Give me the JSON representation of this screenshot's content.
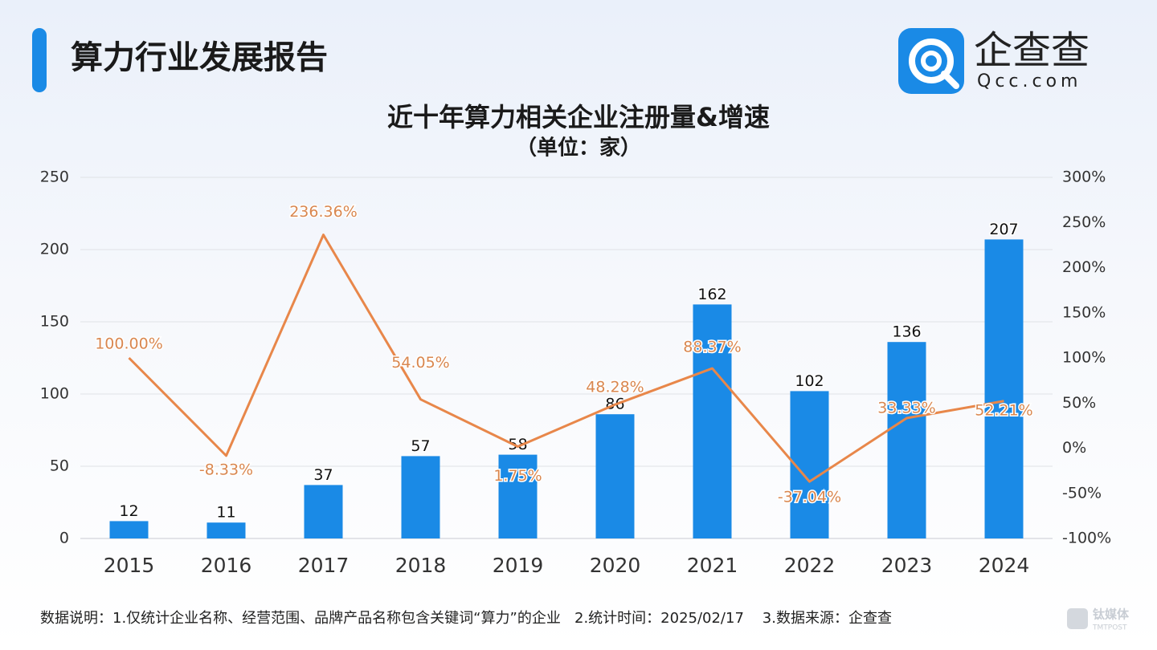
{
  "header": {
    "title": "算力行业发展报告"
  },
  "logo": {
    "name": "企查查",
    "domain": "Qcc.com"
  },
  "chart_data": {
    "type": "bar-line",
    "title": "近十年算力相关企业注册量&增速",
    "subtitle": "（单位：家）",
    "categories": [
      "2015",
      "2016",
      "2017",
      "2018",
      "2019",
      "2020",
      "2021",
      "2022",
      "2023",
      "2024"
    ],
    "series": [
      {
        "type": "bar",
        "color": "#1a8ae6",
        "values": [
          12,
          11,
          37,
          57,
          58,
          86,
          162,
          102,
          136,
          207
        ]
      },
      {
        "type": "line",
        "axis": "y2",
        "color": "#e8874a",
        "values": [
          100,
          -8.33,
          236.36,
          54.05,
          1.75,
          48.28,
          88.37,
          -37.04,
          33.33,
          52.21
        ],
        "value_labels": [
          "100.00%",
          "-8.33%",
          "236.36%",
          "54.05%",
          "1.75%",
          "48.28%",
          "88.37%",
          "-37.04%",
          "33.33%",
          "52.21%"
        ]
      }
    ],
    "ylim": [
      0,
      250
    ],
    "yticks": [
      0,
      50,
      100,
      150,
      200,
      250
    ],
    "y2lim": [
      -100,
      300
    ],
    "y2ticks": [
      {
        "value": -100,
        "label": "-100%"
      },
      {
        "value": -50,
        "label": "-50%"
      },
      {
        "value": 0,
        "label": "0%"
      },
      {
        "value": 50,
        "label": "50%"
      },
      {
        "value": 100,
        "label": "100%"
      },
      {
        "value": 150,
        "label": "150%"
      },
      {
        "value": 200,
        "label": "200%"
      },
      {
        "value": 250,
        "label": "250%"
      },
      {
        "value": 300,
        "label": "300%"
      }
    ],
    "grid": true
  },
  "footer": {
    "note": "数据说明：1.仅统计企业名称、经营范围、品牌产品名称包含关键词“算力”的企业   2.统计时间：2025/02/17    3.数据来源：企查查"
  },
  "watermark": {
    "name": "钛媒体",
    "sub": "TMTPOST"
  }
}
